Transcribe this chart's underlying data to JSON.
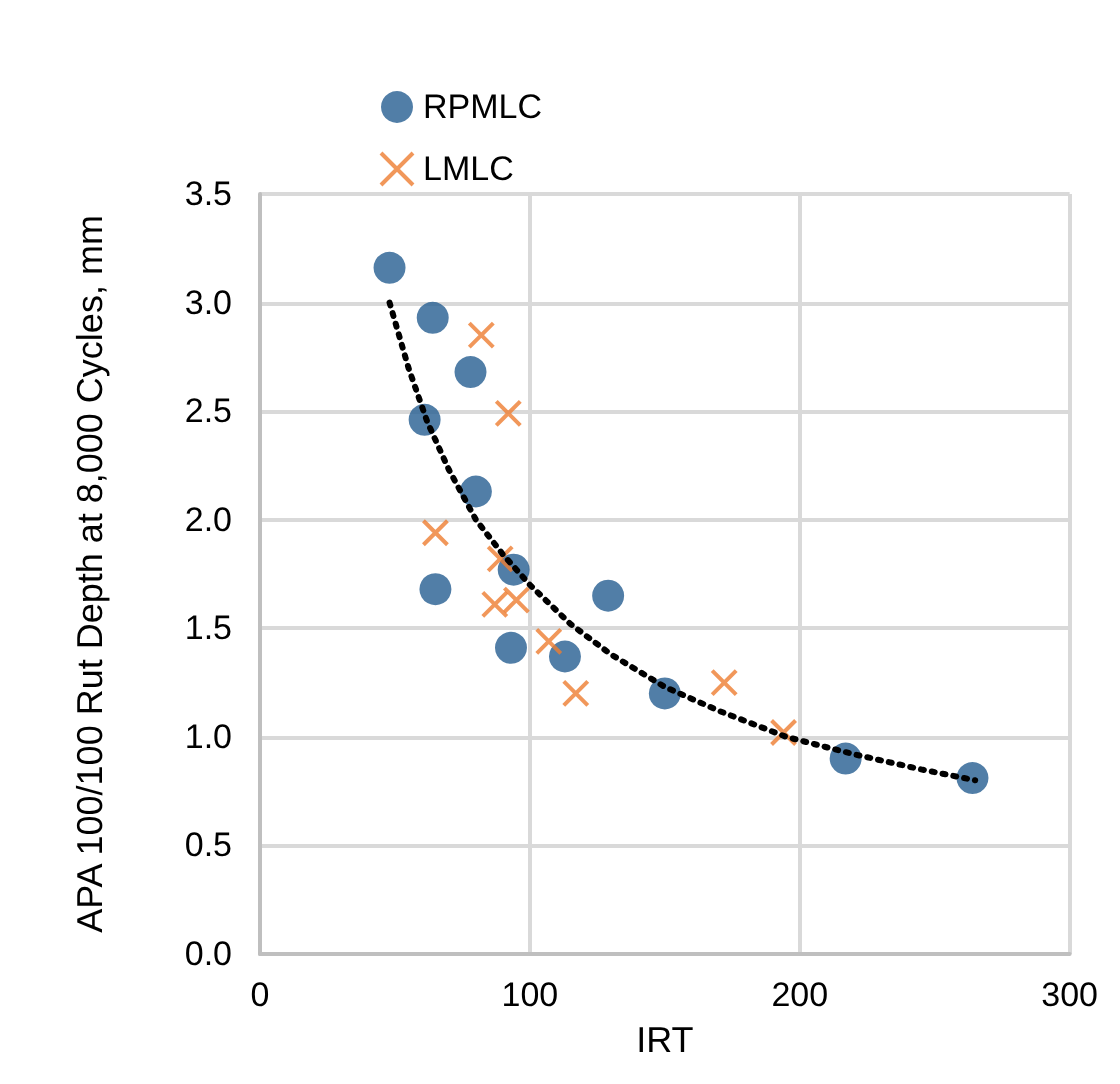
{
  "chart_data": {
    "type": "scatter",
    "xlabel": "IRT",
    "ylabel": "APA 100/100 Rut Depth at 8,000 Cycles, mm",
    "xlim": [
      0,
      300
    ],
    "xticks": [
      0,
      100,
      200,
      300
    ],
    "ylim": [
      0,
      3.5
    ],
    "yticks": [
      {
        "value": 0,
        "label": "0.0"
      },
      {
        "value": 0.5,
        "label": "0.5"
      },
      {
        "value": 1,
        "label": "1.0"
      },
      {
        "value": 1.5,
        "label": "1.5"
      },
      {
        "value": 2,
        "label": "2.0"
      },
      {
        "value": 2.5,
        "label": "2.5"
      },
      {
        "value": 3,
        "label": "3.0"
      },
      {
        "value": 3.5,
        "label": "3.5"
      }
    ],
    "grid": true,
    "legend": "top left",
    "series": [
      {
        "name": "RPMLC",
        "marker": "circle",
        "color": "#255e91",
        "x": [
          48,
          64,
          78,
          61,
          80,
          94,
          65,
          129,
          93,
          113,
          150,
          217,
          264
        ],
        "values": [
          3.16,
          2.93,
          2.68,
          2.46,
          2.13,
          1.77,
          1.68,
          1.65,
          1.41,
          1.37,
          1.2,
          0.9,
          0.81
        ]
      },
      {
        "name": "LMLC",
        "marker": "cross",
        "color": "#ed7d31",
        "x": [
          82,
          92,
          65,
          89,
          87,
          95,
          107,
          117,
          172,
          194
        ],
        "values": [
          2.85,
          2.49,
          1.94,
          1.82,
          1.61,
          1.63,
          1.44,
          1.2,
          1.25,
          1.02
        ]
      },
      {
        "type": "line",
        "marker": "none",
        "line_style": "dotted",
        "color": "#000000",
        "x": [
          48,
          55,
          62,
          70,
          80,
          90,
          100,
          115,
          130,
          150,
          170,
          195,
          220,
          245,
          265
        ],
        "values": [
          3.0,
          2.7,
          2.45,
          2.23,
          2.0,
          1.84,
          1.7,
          1.52,
          1.38,
          1.23,
          1.12,
          1.0,
          0.92,
          0.85,
          0.8
        ]
      }
    ]
  }
}
